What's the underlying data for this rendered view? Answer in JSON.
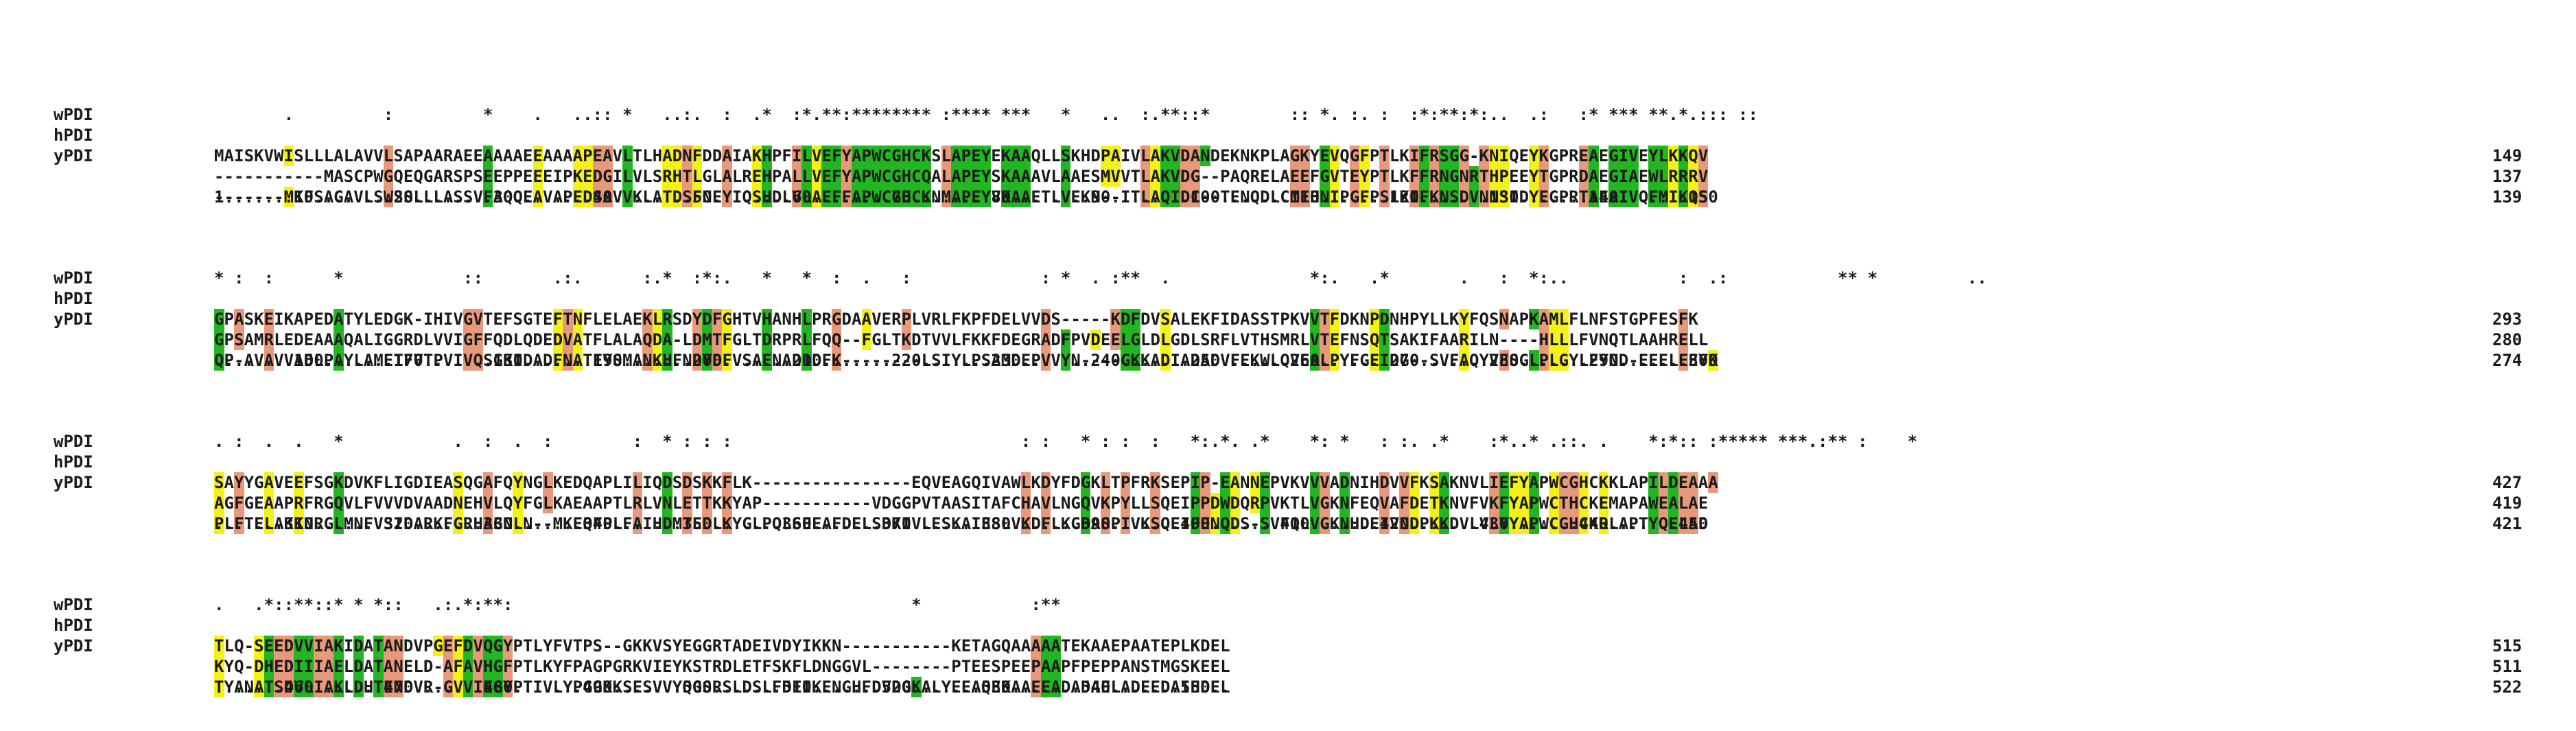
{
  "colors": {
    "identical": "#22b622",
    "strong": "#e8997c",
    "weak": "#f4f01a",
    "text": "#1a1a1a"
  },
  "blocks": [
    {
      "cons": "       .         :         *    .   ..:: *   ..:.  :  .*  :*.**:******** :**** ***   *   ..  :.**::*        :: *. :. :  :*:**:*:..  .:   :* *** **.*.::: ::",
      "rows": [
        {
          "name": "wPDI",
          "seq": "MAISKVWISLLLALAVVLSAPAARAEEAAAAEEAAAAPEAVLTLHADNFDDAIAKHPFILVEFYAPWCGHCKSLAPEYEKAAQLLSKHDPAIVLAKVDANDEKNKPLAGKYEVQGFPTLKIFRSGG-KNIQEYKGPREAEGIVEYLKKQV",
          "end": "149"
        },
        {
          "name": "hPDI",
          "seq": "-----------MASCPWGQEQGARSPSEEPPEEEIPKEDGILVLSRHTLGLALREHPALLVEFYAPWCGHCQALAPEYSKAAAVLAAESMVVTLAKVDG--PAQRELAEEFGVTEYPTLKFFRNGNRTHPEEYTGPRDAEGIAEWLRRRV",
          "end": "137"
        },
        {
          "name": "yPDI",
          "seq": "-------MKFSAGAVLSWSSLLLASSVFAQQEAVAPEDSAVVKLATDSFNEYIQSHDLVLAEFFAPWCGHCKNMAPEYVKAAETLVEKN--ITLAQIDC--TENQDLCMEHNIPGFPSLKIFKNSDVNNSIDYEGPRTAEAIVQFMIKQS",
          "end": "139"
        }
      ],
      "ruler": "1.......10........20........30........40........50........60........70........80........90........100.......110.......120.......130.......140.......150"
    },
    {
      "cons": "* :  :      *            ::       .:.      :.*  :*:.   *   *  :  .   :             : *  . :**  .              *:.   .*       .   :  *:..           :  .:           ** *         ..",
      "rows": [
        {
          "name": "wPDI",
          "seq": "GPASKEIKAPEDATYLEDGK-IHIVGVTEFSGTEFTNFLELAEKLRSDYDFGHTVHANHLPRGDAAVERPLVRLFKPFDELVVDS-----KDFDVSALEKFIDASSTPKVVTFDKNPDNHPYLLKYFQSNAPKAMLFLNFSTGPFESFK",
          "end": "293"
        },
        {
          "name": "hPDI",
          "seq": "GPSAMRLEDEAAAQALIGGRDLVVIGFFQDLQDEDVATFLALAQDA-LDMTFGLTDRPRLFQQ--FGLTKDTVVLFKKFDEGRADFPVDEELGLDLGDLSRFLVTHSMRLVTEFNSQTSAKIFAARILN----HLLLFVNQTLAAHRELL",
          "end": "280"
        },
        {
          "name": "yPDI",
          "seq": "QP-AVAVVADLPAYLAMETFVTPVIVQSGKIDADFNATFYSMANKHFNDYDFVSAENADDDFK--------LSIYLPSAMDEPVVYN----GKKADIADADVFEKWLQVEALPYFGEIDG--SVFAQYVESGLPLGYLFYND-EEELEEYK",
          "end": "274"
        }
      ],
      "ruler": "........160.......170.......180.......190.......200.......210.......220.......230.......240.......250.......260.......270.......280.......290.......300"
    },
    {
      "cons": ". :  .  .   *           .  :  .  :        :  * : : :                             : :   * : :  :   *:.*. .*    *: *   : :. .*    :*..* .::. .    *:*:: :***** ***.:** :    *",
      "rows": [
        {
          "name": "wPDI",
          "seq": "SAYYGAVEEFSGKDVKFLIGDIEASQGAFQYNGLKEDQAPLILIQDSDSKKFLK----------------EQVEAGQIVAWLKDYFDGKLTPFRKSEPIP-EANNEPVKVVVADNIHDVVFKSAKNVLIEFYAPWCGHCKKLAPILDEAAA",
          "end": "427"
        },
        {
          "name": "hPDI",
          "seq": "AGFGEAAPRFRGQVLFVVVDVAADNEHVLQYFGLKAEAAPTLRLVNLETTKKYAP-----------VDGGPVTAASITAFCHAVLNGQVKPYLLSQEIPPDWDQRPVKTLVGKNFEQVAFDETKNVFVKFYAPWCTHCKEMAPAWEALAE",
          "end": "419"
        },
        {
          "name": "yPDI",
          "seq": "PLFTELAKKNRGLMNFVSIDARKFGRHAGNLN--MKEQFPLFAIHDMTEDLKYGLPQLSEEAFDELSDKIVLESKAIESLVKDFLKGDASPIVKSQEIFENQDS-SVFQLVGKNHDEIVNDPKKDVLVLYYAPWCGHCKRLAPTYQELAD",
          "end": "421"
        }
      ],
      "ruler": ".......310.......320.......330.......340.......350.......360.......370.......380.......390.......400.......410.......420.......430.......440.......450"
    },
    {
      "cons": ".   .*::**::* * *::   .:.*:**:                                        *           :**",
      "rows": [
        {
          "name": "wPDI",
          "seq": "TLQ-SEEDVVIAKIDATANDVPGEFDVQGYPTLYFVTPS--GKKVSYEGGRTADEIVDYIKKN-----------KETAGQAAAAATEKAAEPAATEPLKDEL",
          "end": "515"
        },
        {
          "name": "hPDI",
          "seq": "KYQ-DHEDIIIAELDATANELD-AFAVHGFPTLKYFPAGPGRKVIEYKSTRDLETFSKFLDNGGVL--------PTEESPEEPAAPFPEPPANSTMGSKEEL",
          "end": "511"
        },
        {
          "name": "yPDI",
          "seq": "TYANATSDVLIAKLDHTENDVR-GVVIEGYPTIVLYPGGKKSESVVYQGSRSLDSLFDFIKENGHFDVDGKALYEEAQEKAAEEADADAELADEEDAIHDEL",
          "end": "522"
        }
      ],
      "ruler": ".......460.......470.......480.......490.......500.......510.......520.......530.......540.......550.."
    }
  ]
}
